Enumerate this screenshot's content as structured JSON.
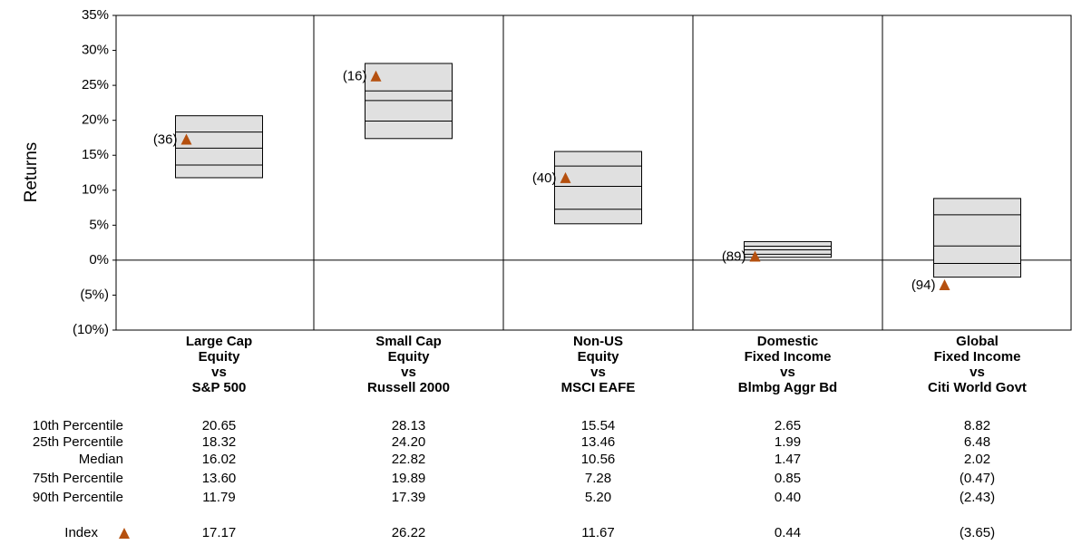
{
  "chart_data": {
    "type": "floating-bar",
    "y_label": "Returns",
    "ylim": [
      -10,
      35
    ],
    "yticks": [
      {
        "value": -10,
        "label": "(10%)"
      },
      {
        "value": -5,
        "label": "(5%)"
      },
      {
        "value": 0,
        "label": "0%"
      },
      {
        "value": 5,
        "label": "5%"
      },
      {
        "value": 10,
        "label": "10%"
      },
      {
        "value": 15,
        "label": "15%"
      },
      {
        "value": 20,
        "label": "20%"
      },
      {
        "value": 25,
        "label": "25%"
      },
      {
        "value": 30,
        "label": "30%"
      },
      {
        "value": 35,
        "label": "35%"
      }
    ],
    "negative_color": "#ff0000",
    "box_color": "#e0e0e0",
    "categories": [
      [
        "Large Cap",
        "Equity",
        "vs",
        "S&P 500"
      ],
      [
        "Small Cap",
        "Equity",
        "vs",
        "Russell 2000"
      ],
      [
        "Non-US",
        "Equity",
        "vs",
        "MSCI EAFE"
      ],
      [
        "Domestic",
        "Fixed Income",
        "vs",
        "Blmbg Aggr Bd"
      ],
      [
        "Global",
        "Fixed Income",
        "vs",
        "Citi World Govt"
      ]
    ],
    "series": [
      {
        "name": "10th Percentile",
        "values": [
          20.65,
          28.13,
          15.54,
          2.65,
          8.82
        ],
        "value_labels": [
          "20.65",
          "28.13",
          "15.54",
          "2.65",
          "8.82"
        ]
      },
      {
        "name": "25th Percentile",
        "values": [
          18.32,
          24.2,
          13.46,
          1.99,
          6.48
        ],
        "value_labels": [
          "18.32",
          "24.20",
          "13.46",
          "1.99",
          "6.48"
        ]
      },
      {
        "name": "Median",
        "values": [
          16.02,
          22.82,
          10.56,
          1.47,
          2.02
        ],
        "value_labels": [
          "16.02",
          "22.82",
          "10.56",
          "1.47",
          "2.02"
        ]
      },
      {
        "name": "75th Percentile",
        "values": [
          13.6,
          19.89,
          7.28,
          0.85,
          -0.47
        ],
        "value_labels": [
          "13.60",
          "19.89",
          "7.28",
          "0.85",
          "(0.47)"
        ]
      },
      {
        "name": "90th Percentile",
        "values": [
          11.79,
          17.39,
          5.2,
          0.4,
          -2.43
        ],
        "value_labels": [
          "11.79",
          "17.39",
          "5.20",
          "0.40",
          "(2.43)"
        ]
      },
      {
        "name": "Index",
        "color": "#b5500f",
        "values": [
          17.17,
          26.22,
          11.67,
          0.44,
          -3.65
        ],
        "value_labels": [
          "17.17",
          "26.22",
          "11.67",
          "0.44",
          "(3.65)"
        ],
        "rank_labels": [
          "(36)",
          "(16)",
          "(40)",
          "(89)",
          "(94)"
        ]
      }
    ]
  }
}
